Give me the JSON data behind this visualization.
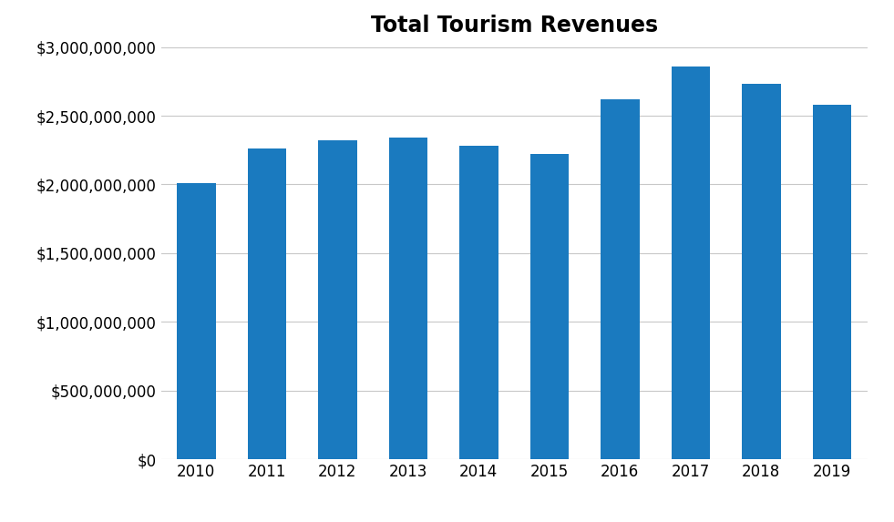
{
  "title": "Total Tourism Revenues",
  "categories": [
    "2010",
    "2011",
    "2012",
    "2013",
    "2014",
    "2015",
    "2016",
    "2017",
    "2018",
    "2019"
  ],
  "values": [
    2010000000,
    2260000000,
    2320000000,
    2340000000,
    2280000000,
    2220000000,
    2620000000,
    2860000000,
    2730000000,
    2580000000
  ],
  "bar_color": "#1a7abf",
  "ylim": [
    0,
    3000000000
  ],
  "yticks": [
    0,
    500000000,
    1000000000,
    1500000000,
    2000000000,
    2500000000,
    3000000000
  ],
  "title_fontsize": 17,
  "tick_fontsize": 12,
  "background_color": "#ffffff",
  "grid_color": "#c8c8c8",
  "bar_width": 0.55
}
